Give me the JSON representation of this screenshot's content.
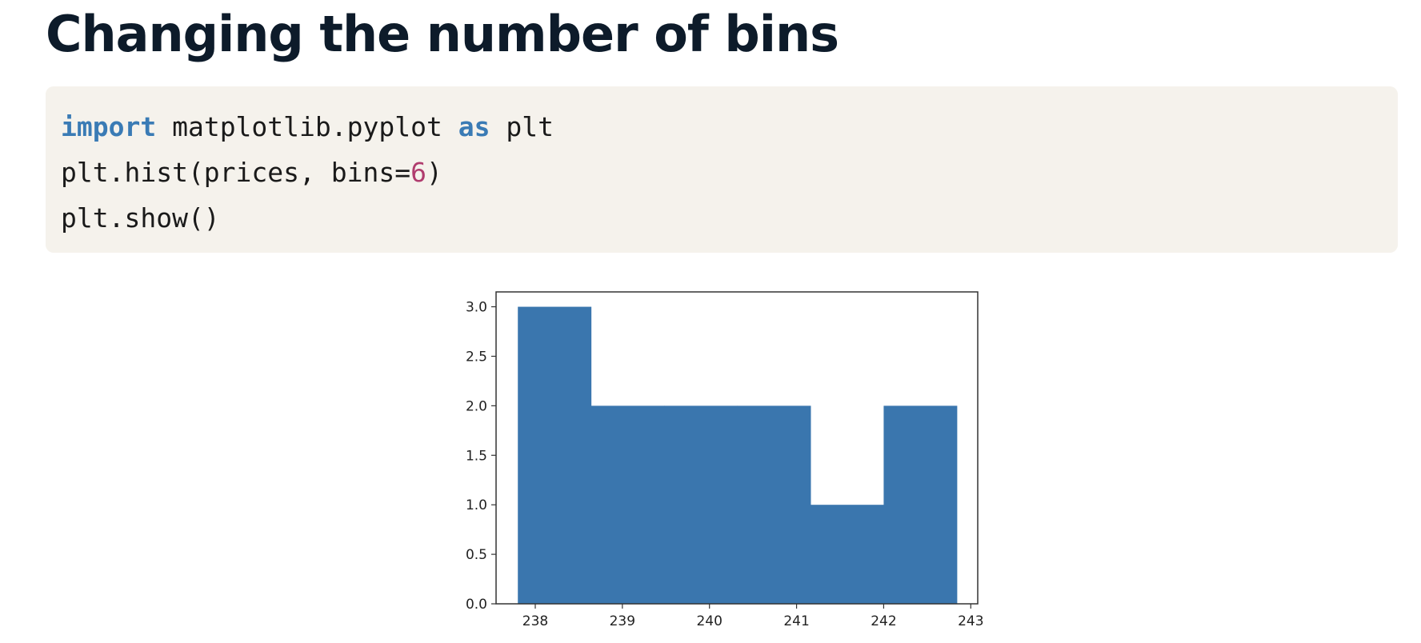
{
  "slide": {
    "title": "Changing the number of bins"
  },
  "code": {
    "lines": [
      [
        {
          "text": "import",
          "kind": "kw"
        },
        {
          "text": " matplotlib.pyplot ",
          "kind": "plain"
        },
        {
          "text": "as",
          "kind": "kw"
        },
        {
          "text": " plt",
          "kind": "plain"
        }
      ],
      [
        {
          "text": "plt.hist(prices, bins=",
          "kind": "plain"
        },
        {
          "text": "6",
          "kind": "num"
        },
        {
          "text": ")",
          "kind": "plain"
        }
      ],
      [
        {
          "text": "plt.show()",
          "kind": "plain"
        }
      ]
    ]
  },
  "colors": {
    "bar": "#3a76ae",
    "keyword": "#3a7bb5",
    "number": "#b03c6e",
    "code_bg": "#f5f2ec",
    "title": "#0d1b2a"
  },
  "chart_data": {
    "type": "bar",
    "title": "",
    "xlabel": "",
    "ylabel": "",
    "bin_edges": [
      237.8,
      238.64,
      239.48,
      240.32,
      241.16,
      242.0,
      242.84
    ],
    "values": [
      3,
      2,
      2,
      2,
      1,
      2
    ],
    "xlim": [
      237.55,
      243.08
    ],
    "ylim": [
      0,
      3.15
    ],
    "xticks": [
      238,
      239,
      240,
      241,
      242,
      243
    ],
    "yticks": [
      0.0,
      0.5,
      1.0,
      1.5,
      2.0,
      2.5,
      3.0
    ],
    "ytick_labels": [
      "0.0",
      "0.5",
      "1.0",
      "1.5",
      "2.0",
      "2.5",
      "3.0"
    ],
    "grid": false
  }
}
